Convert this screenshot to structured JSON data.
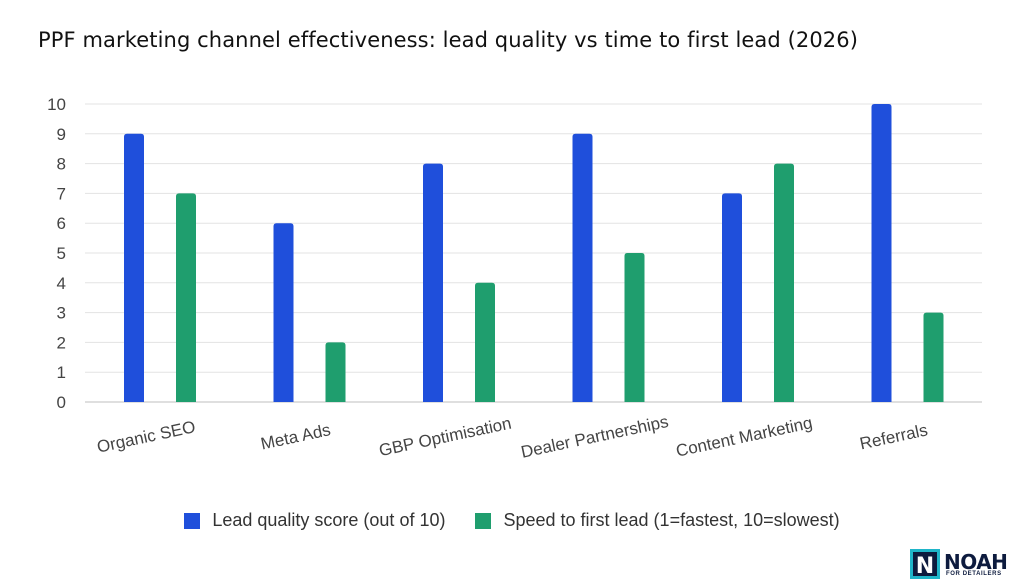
{
  "chart_data": {
    "type": "bar",
    "title": "PPF marketing channel effectiveness: lead quality vs time to first lead (2026)",
    "categories": [
      "Organic SEO",
      "Meta Ads",
      "GBP Optimisation",
      "Dealer Partnerships",
      "Content Marketing",
      "Referrals"
    ],
    "series": [
      {
        "name": "Lead quality score (out of 10)",
        "color": "#1f4fdb",
        "values": [
          9,
          6,
          8,
          9,
          7,
          10
        ]
      },
      {
        "name": "Speed to first lead (1=fastest, 10=slowest)",
        "color": "#1f9e6e",
        "values": [
          7,
          2,
          4,
          5,
          8,
          3
        ]
      }
    ],
    "ylim": [
      0,
      10
    ],
    "yticks": [
      0,
      1,
      2,
      3,
      4,
      5,
      6,
      7,
      8,
      9,
      10
    ],
    "grid": true,
    "legend_position": "bottom"
  },
  "logo": {
    "word": "NOAH",
    "sub": "FOR DETAILERS",
    "mark": "N"
  }
}
